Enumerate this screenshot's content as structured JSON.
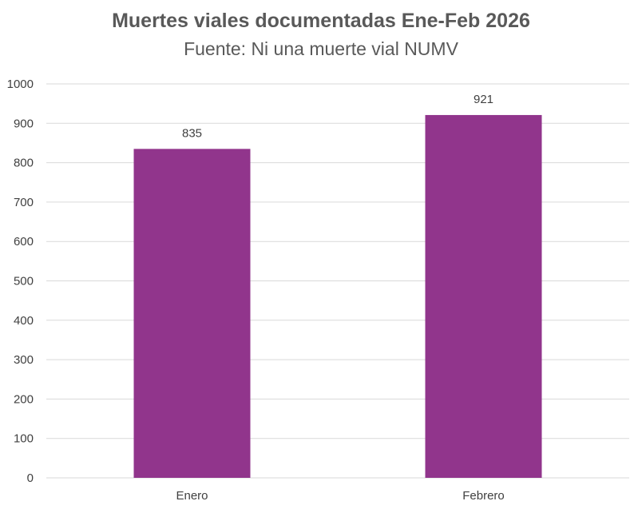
{
  "chart_data": {
    "type": "bar",
    "title": "Muertes viales documentadas Ene-Feb 2026",
    "subtitle": "Fuente: Ni una muerte vial NUMV",
    "categories": [
      "Enero",
      "Febrero"
    ],
    "values": [
      835,
      921
    ],
    "data_labels": [
      "835",
      "921"
    ],
    "ylim": [
      0,
      1000
    ],
    "yticks": [
      0,
      100,
      200,
      300,
      400,
      500,
      600,
      700,
      800,
      900,
      1000
    ],
    "ytick_labels": [
      "0",
      "100",
      "200",
      "300",
      "400",
      "500",
      "600",
      "700",
      "800",
      "900",
      "1000"
    ],
    "xlabel": "",
    "ylabel": "",
    "grid": true,
    "legend": "none",
    "colors": {
      "bar": "#91358C",
      "grid": "#D9D9D9",
      "text": "#404040",
      "title": "#595959"
    }
  }
}
